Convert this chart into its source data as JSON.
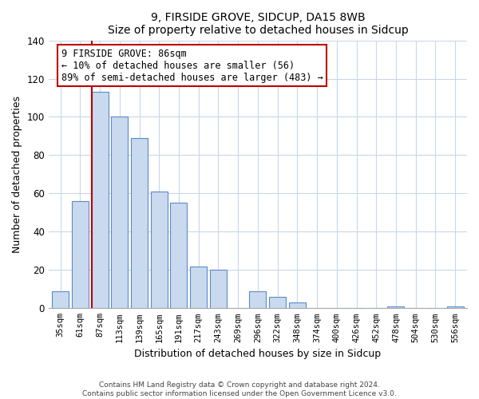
{
  "title": "9, FIRSIDE GROVE, SIDCUP, DA15 8WB",
  "subtitle": "Size of property relative to detached houses in Sidcup",
  "xlabel": "Distribution of detached houses by size in Sidcup",
  "ylabel": "Number of detached properties",
  "bar_labels": [
    "35sqm",
    "61sqm",
    "87sqm",
    "113sqm",
    "139sqm",
    "165sqm",
    "191sqm",
    "217sqm",
    "243sqm",
    "269sqm",
    "296sqm",
    "322sqm",
    "348sqm",
    "374sqm",
    "400sqm",
    "426sqm",
    "452sqm",
    "478sqm",
    "504sqm",
    "530sqm",
    "556sqm"
  ],
  "bar_values": [
    9,
    56,
    113,
    100,
    89,
    61,
    55,
    22,
    20,
    0,
    9,
    6,
    3,
    0,
    0,
    0,
    0,
    1,
    0,
    0,
    1
  ],
  "bar_facecolor": "#c9d9ee",
  "bar_edgecolor": "#5b8cc8",
  "highlight_bar_index": 2,
  "highlight_color": "#c00000",
  "annotation_title": "9 FIRSIDE GROVE: 86sqm",
  "annotation_line1": "← 10% of detached houses are smaller (56)",
  "annotation_line2": "89% of semi-detached houses are larger (483) →",
  "ylim": [
    0,
    140
  ],
  "yticks": [
    0,
    20,
    40,
    60,
    80,
    100,
    120,
    140
  ],
  "footer_line1": "Contains HM Land Registry data © Crown copyright and database right 2024.",
  "footer_line2": "Contains public sector information licensed under the Open Government Licence v3.0."
}
